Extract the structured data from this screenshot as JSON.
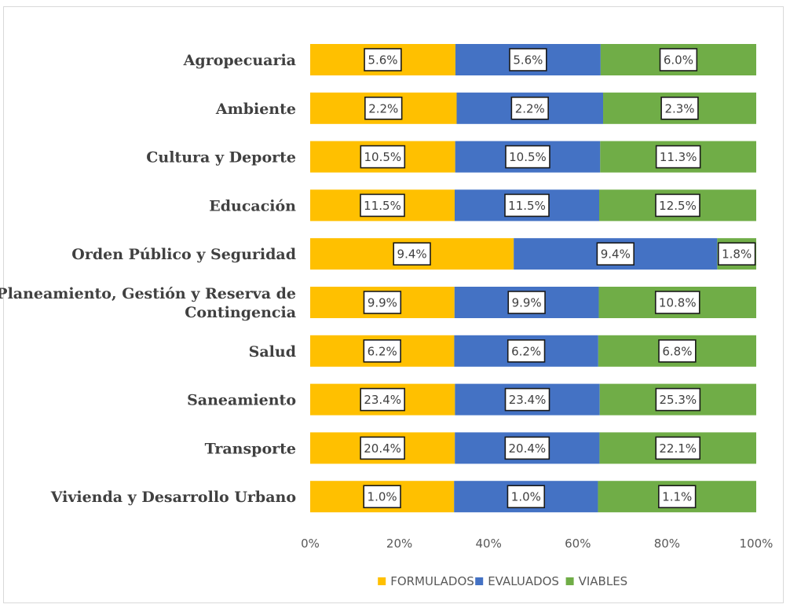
{
  "chart_data": {
    "type": "bar",
    "orientation": "horizontal",
    "stacked": "percent",
    "categories": [
      "Agropecuaria",
      "Ambiente",
      "Cultura y Deporte",
      "Educación",
      "Orden Público y Seguridad",
      "Planeamiento, Gestión y Reserva de Contingencia",
      "Salud",
      "Saneamiento",
      "Transporte",
      "Vivienda y Desarrollo Urbano"
    ],
    "category_label_lines": [
      [
        "Agropecuaria"
      ],
      [
        "Ambiente"
      ],
      [
        "Cultura y Deporte"
      ],
      [
        "Educación"
      ],
      [
        "Orden Público y Seguridad"
      ],
      [
        "Planeamiento, Gestión y Reserva de",
        "Contingencia"
      ],
      [
        "Salud"
      ],
      [
        "Saneamiento"
      ],
      [
        "Transporte"
      ],
      [
        "Vivienda y Desarrollo Urbano"
      ]
    ],
    "series": [
      {
        "name": "FORMULADOS",
        "color": "#FFC000",
        "values": [
          5.6,
          2.2,
          10.5,
          11.5,
          9.4,
          9.9,
          6.2,
          23.4,
          20.4,
          1.0
        ],
        "labels": [
          "5.6%",
          "2.2%",
          "10.5%",
          "11.5%",
          "9.4%",
          "9.9%",
          "6.2%",
          "23.4%",
          "20.4%",
          "1.0%"
        ]
      },
      {
        "name": "EVALUADOS",
        "color": "#4472C4",
        "values": [
          5.6,
          2.2,
          10.5,
          11.5,
          9.4,
          9.9,
          6.2,
          23.4,
          20.4,
          1.0
        ],
        "labels": [
          "5.6%",
          "2.2%",
          "10.5%",
          "11.5%",
          "9.4%",
          "9.9%",
          "6.2%",
          "23.4%",
          "20.4%",
          "1.0%"
        ]
      },
      {
        "name": "VIABLES",
        "color": "#70AD47",
        "values": [
          6.0,
          2.3,
          11.3,
          12.5,
          1.8,
          10.8,
          6.8,
          25.3,
          22.1,
          1.1
        ],
        "labels": [
          "6.0%",
          "2.3%",
          "11.3%",
          "12.5%",
          "1.8%",
          "10.8%",
          "6.8%",
          "25.3%",
          "22.1%",
          "1.1%"
        ]
      }
    ],
    "x_ticks": [
      "0%",
      "20%",
      "40%",
      "60%",
      "80%",
      "100%"
    ],
    "xlim": [
      0,
      100
    ],
    "grid": false,
    "legend": "bottom"
  }
}
